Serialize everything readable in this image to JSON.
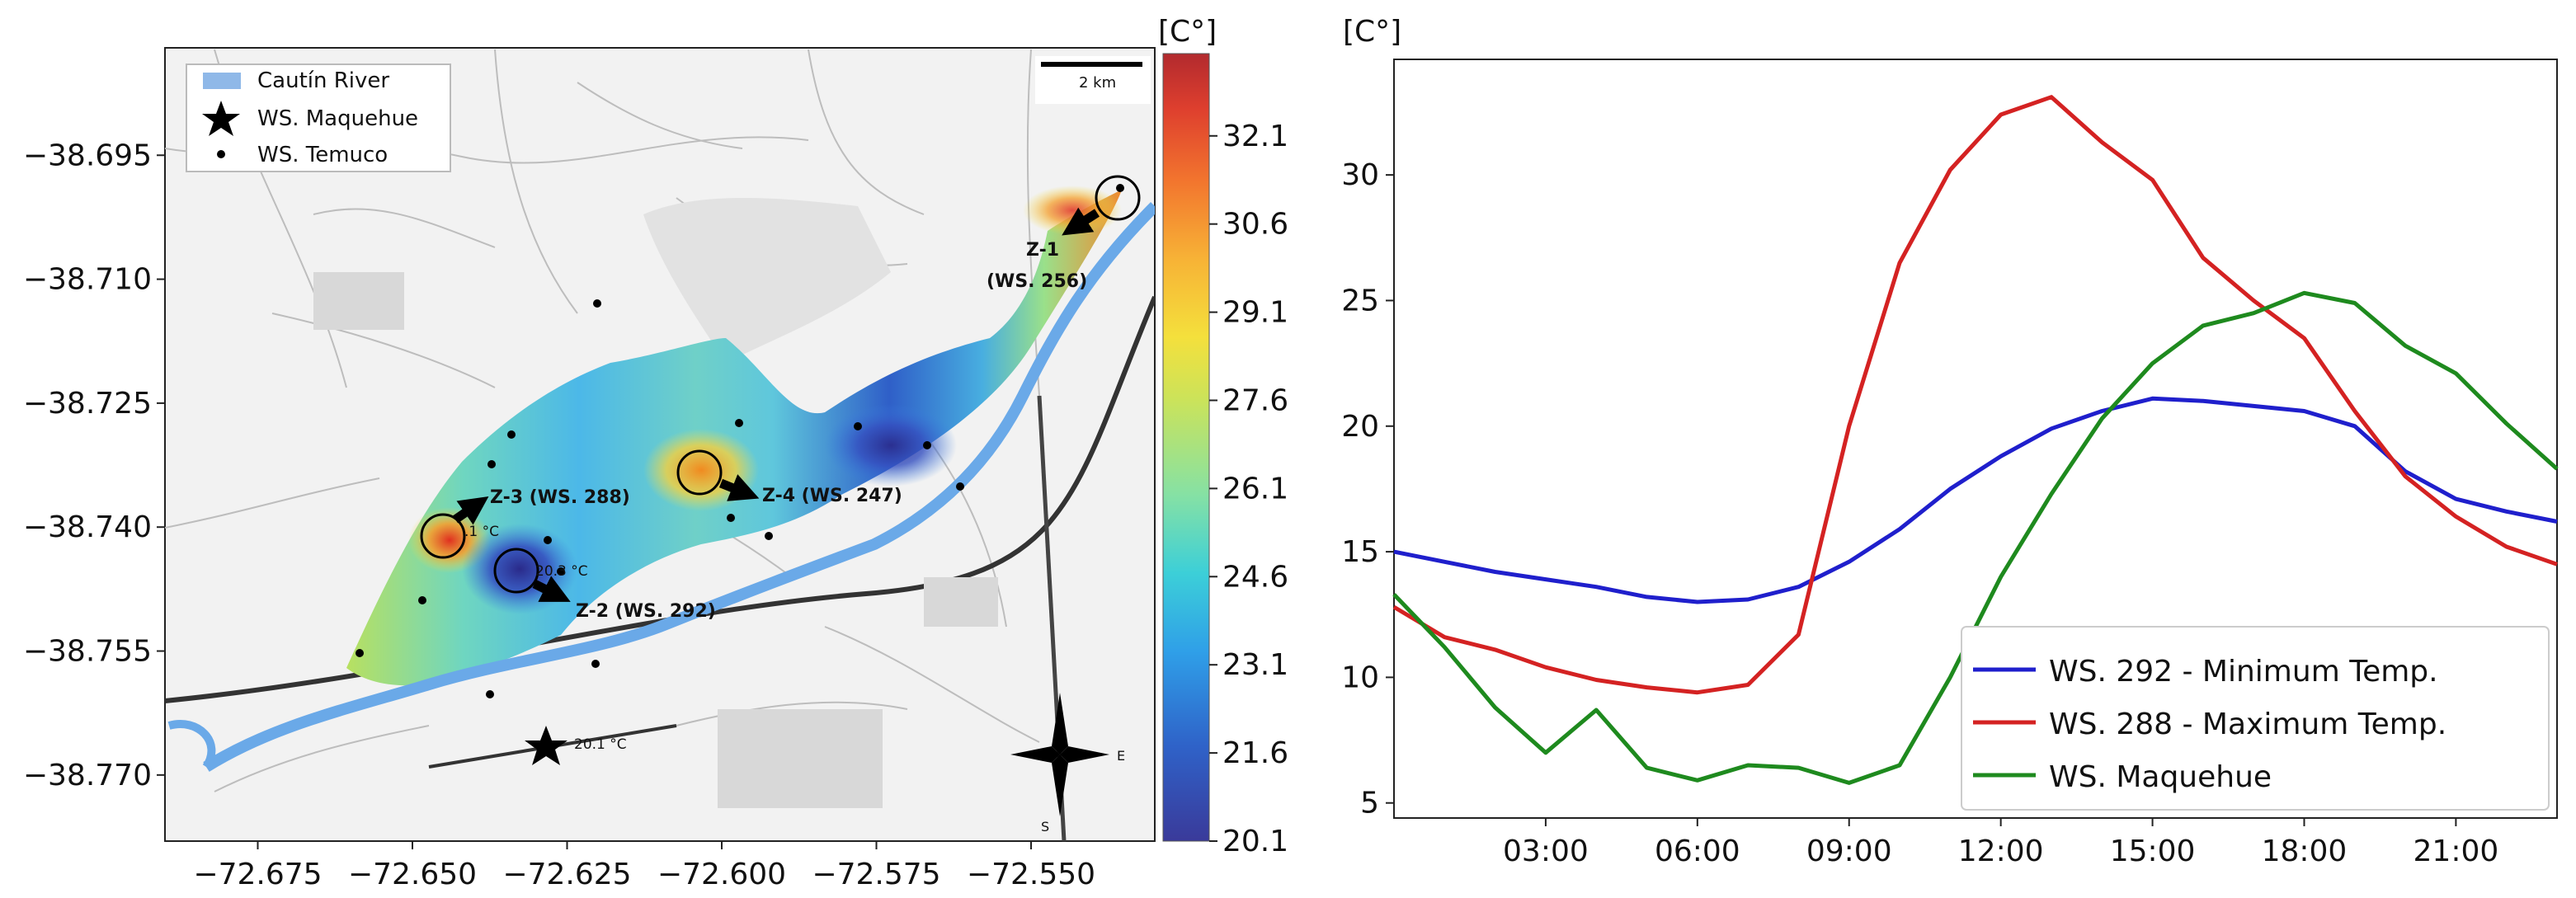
{
  "chart_data": [
    {
      "type": "heatmap",
      "title": "",
      "x_ticks": [
        "−72.675",
        "−72.650",
        "−72.625",
        "−72.600",
        "−72.575",
        "−72.550"
      ],
      "x_values": [
        -72.675,
        -72.65,
        -72.625,
        -72.6,
        -72.575,
        -72.55
      ],
      "xlim": [
        -72.69,
        -72.53
      ],
      "y_ticks": [
        "−38.695",
        "−38.710",
        "−38.725",
        "−38.740",
        "−38.755",
        "−38.770"
      ],
      "y_values": [
        -38.695,
        -38.71,
        -38.725,
        -38.74,
        -38.755,
        -38.77
      ],
      "ylim": [
        -38.778,
        -38.682
      ],
      "colorbar": {
        "unit": "[C°]",
        "ticks": [
          "32.1",
          "30.6",
          "29.1",
          "27.6",
          "26.1",
          "24.6",
          "23.1",
          "21.6",
          "20.1"
        ],
        "min": 20.1,
        "max": 33.5
      },
      "legend": [
        {
          "label": "Cautín River",
          "symbol": "river-patch"
        },
        {
          "label": "WS. Maquehue",
          "symbol": "star"
        },
        {
          "label": "WS. Temuco",
          "symbol": "dot"
        }
      ],
      "scale_bar": "2 km",
      "zones": [
        {
          "label": "Z-1",
          "sub": "(WS. 256)",
          "lon": -72.534,
          "lat": -38.698
        },
        {
          "label": "Z-2 (WS. 292)",
          "lon": -72.633,
          "lat": -38.747
        },
        {
          "label": "Z-3 (WS. 288)",
          "lon": -72.647,
          "lat": -38.742
        },
        {
          "label": "Z-4 (WS. 247)",
          "lon": -72.603,
          "lat": -38.733
        }
      ],
      "annotations": [
        ".1 °C",
        "20.3 °C",
        "20.1 °C"
      ],
      "compass": [
        "E",
        "S"
      ]
    },
    {
      "type": "line",
      "title": "",
      "ylabel": "[C°]",
      "xlabel": "",
      "x": [
        0,
        1,
        2,
        3,
        4,
        5,
        6,
        7,
        8,
        9,
        10,
        11,
        12,
        13,
        14,
        15,
        16,
        17,
        18,
        19,
        20,
        21,
        22,
        23
      ],
      "x_ticks": [
        {
          "label": "03:00",
          "value": 3
        },
        {
          "label": "06:00",
          "value": 6
        },
        {
          "label": "09:00",
          "value": 9
        },
        {
          "label": "12:00",
          "value": 12
        },
        {
          "label": "15:00",
          "value": 15
        },
        {
          "label": "18:00",
          "value": 18
        },
        {
          "label": "21:00",
          "value": 21
        }
      ],
      "xlim": [
        0,
        23
      ],
      "y_ticks": [
        5,
        10,
        15,
        20,
        25,
        30
      ],
      "ylim": [
        4.4,
        34.6
      ],
      "series": [
        {
          "name": "WS. 292 - Minimum Temp.",
          "color": "#1f1fcc",
          "values": [
            15.0,
            14.6,
            14.2,
            13.9,
            13.6,
            13.2,
            13.0,
            13.1,
            13.6,
            14.6,
            15.9,
            17.5,
            18.8,
            19.9,
            20.6,
            21.1,
            21.0,
            20.8,
            20.6,
            20.0,
            18.2,
            17.1,
            16.6,
            16.2
          ]
        },
        {
          "name": "WS. 288 - Maximum Temp.",
          "color": "#d42222",
          "values": [
            12.8,
            11.6,
            11.1,
            10.4,
            9.9,
            9.6,
            9.4,
            9.7,
            11.7,
            20.0,
            26.5,
            30.2,
            32.4,
            33.1,
            31.3,
            29.8,
            26.7,
            25.0,
            23.5,
            20.6,
            18.0,
            16.4,
            15.2,
            14.5
          ]
        },
        {
          "name": "WS. Maquehue",
          "color": "#1e8a1e",
          "values": [
            13.3,
            11.2,
            8.8,
            7.0,
            8.7,
            6.4,
            5.9,
            6.5,
            6.4,
            5.8,
            6.5,
            10.0,
            14.0,
            17.3,
            20.3,
            22.5,
            24.0,
            24.5,
            25.3,
            24.9,
            23.2,
            22.1,
            20.1,
            18.3
          ]
        }
      ]
    }
  ]
}
